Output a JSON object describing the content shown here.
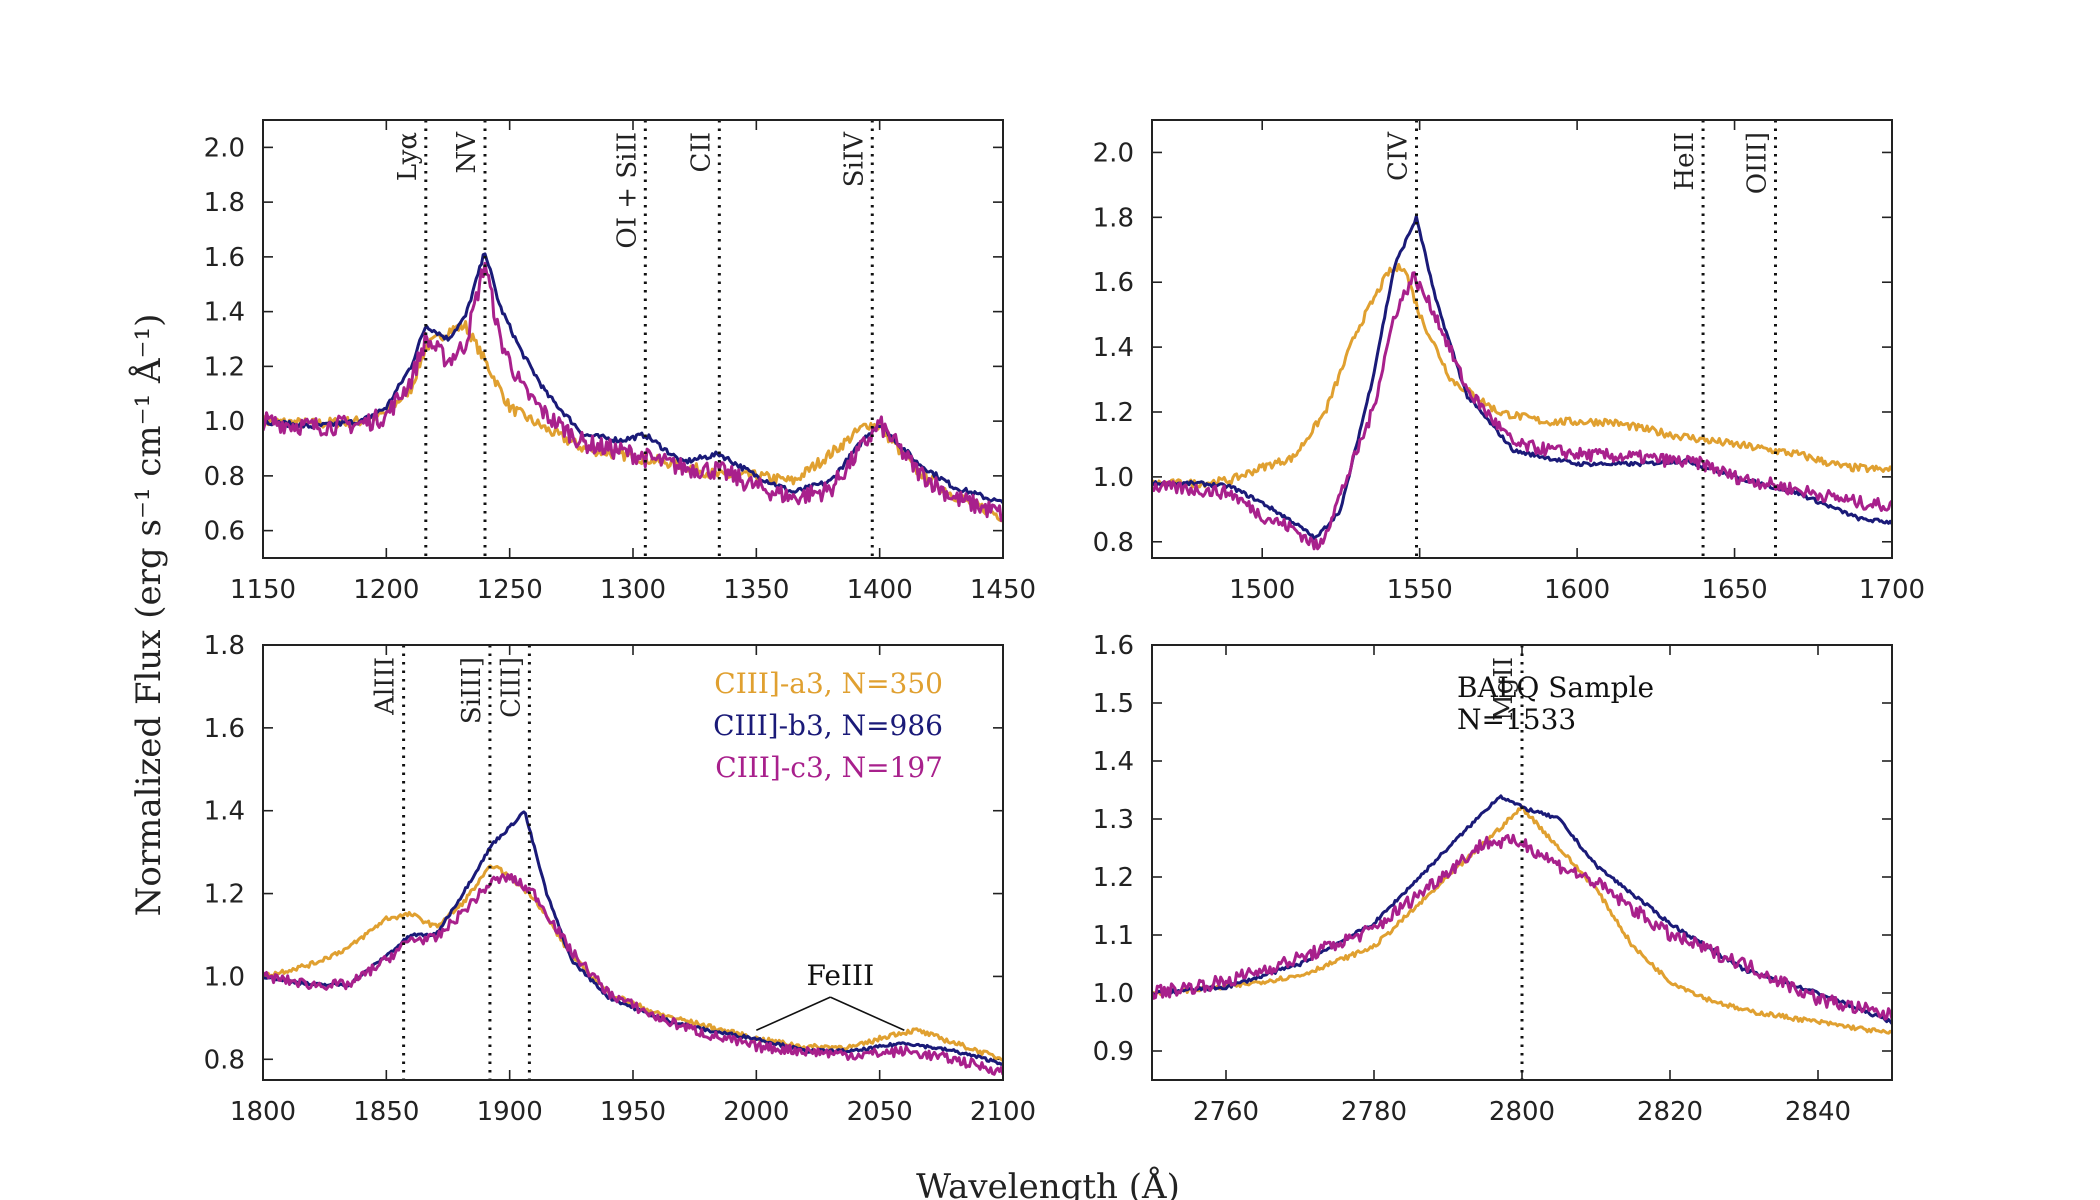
{
  "figure": {
    "ylabel": "Normalized Flux (erg s⁻¹ cm⁻¹ Å⁻¹)",
    "xlabel": "Wavelength (Å)"
  },
  "colors": {
    "a3": "#e0a030",
    "b3": "#1a1a78",
    "c3": "#a8208c"
  },
  "chart_data": [
    {
      "type": "line",
      "id": "p1",
      "xlim": [
        1150,
        1450
      ],
      "ylim": [
        0.5,
        2.1
      ],
      "xticks": [
        1150,
        1200,
        1250,
        1300,
        1350,
        1400,
        1450
      ],
      "yticks": [
        "0.6",
        "0.8",
        "1.0",
        "1.2",
        "1.4",
        "1.6",
        "1.8",
        "2.0"
      ],
      "lines": [
        {
          "x": 1216,
          "label": "Lyα"
        },
        {
          "x": 1240,
          "label": "NV"
        },
        {
          "x": 1305,
          "label": "OI + SiII"
        },
        {
          "x": 1335,
          "label": "CII"
        },
        {
          "x": 1397,
          "label": "SiIV"
        }
      ],
      "series": [
        {
          "name": "CIII]-a3",
          "color": "#e0a030",
          "noise": 0.02,
          "x": [
            1150,
            1170,
            1190,
            1200,
            1210,
            1216,
            1225,
            1232,
            1240,
            1250,
            1265,
            1280,
            1300,
            1320,
            1335,
            1350,
            1365,
            1380,
            1395,
            1400,
            1415,
            1430,
            1450
          ],
          "y": [
            1.0,
            0.99,
            1.0,
            1.03,
            1.12,
            1.27,
            1.33,
            1.35,
            1.22,
            1.05,
            0.97,
            0.9,
            0.87,
            0.84,
            0.8,
            0.8,
            0.78,
            0.88,
            0.99,
            0.98,
            0.82,
            0.73,
            0.65
          ]
        },
        {
          "name": "CIII]-b3",
          "color": "#1a1a78",
          "noise": 0.01,
          "x": [
            1150,
            1170,
            1190,
            1200,
            1210,
            1216,
            1225,
            1232,
            1240,
            1246,
            1255,
            1265,
            1280,
            1295,
            1305,
            1320,
            1335,
            1350,
            1365,
            1380,
            1395,
            1400,
            1415,
            1430,
            1450
          ],
          "y": [
            1.0,
            0.98,
            1.0,
            1.05,
            1.2,
            1.35,
            1.3,
            1.38,
            1.62,
            1.42,
            1.25,
            1.1,
            0.95,
            0.93,
            0.95,
            0.85,
            0.88,
            0.8,
            0.74,
            0.78,
            0.95,
            0.99,
            0.85,
            0.76,
            0.7
          ]
        },
        {
          "name": "CIII]-c3",
          "color": "#a8208c",
          "noise": 0.035,
          "x": [
            1150,
            1170,
            1190,
            1200,
            1210,
            1216,
            1225,
            1232,
            1240,
            1246,
            1255,
            1265,
            1280,
            1300,
            1320,
            1335,
            1350,
            1365,
            1380,
            1395,
            1400,
            1415,
            1430,
            1450
          ],
          "y": [
            1.0,
            0.98,
            0.99,
            1.02,
            1.15,
            1.3,
            1.22,
            1.28,
            1.58,
            1.3,
            1.12,
            1.02,
            0.92,
            0.88,
            0.83,
            0.82,
            0.76,
            0.72,
            0.75,
            0.93,
            0.99,
            0.82,
            0.72,
            0.66
          ]
        }
      ]
    },
    {
      "type": "line",
      "id": "p2",
      "xlim": [
        1465,
        1700
      ],
      "ylim": [
        0.75,
        2.1
      ],
      "xticks": [
        1500,
        1550,
        1600,
        1650,
        1700
      ],
      "yticks": [
        "0.8",
        "1.0",
        "1.2",
        "1.4",
        "1.6",
        "1.8",
        "2.0"
      ],
      "lines": [
        {
          "x": 1549,
          "label": "CIV"
        },
        {
          "x": 1640,
          "label": "HeII"
        },
        {
          "x": 1663,
          "label": "OIII]"
        }
      ],
      "series": [
        {
          "name": "CIII]-a3",
          "color": "#e0a030",
          "noise": 0.012,
          "x": [
            1465,
            1480,
            1490,
            1500,
            1510,
            1520,
            1530,
            1540,
            1545,
            1550,
            1560,
            1575,
            1590,
            1610,
            1630,
            1650,
            1670,
            1685,
            1700
          ],
          "y": [
            0.98,
            0.98,
            0.99,
            1.03,
            1.06,
            1.2,
            1.45,
            1.63,
            1.65,
            1.5,
            1.3,
            1.2,
            1.17,
            1.17,
            1.13,
            1.1,
            1.07,
            1.03,
            1.02
          ]
        },
        {
          "name": "CIII]-b3",
          "color": "#1a1a78",
          "noise": 0.006,
          "x": [
            1465,
            1480,
            1490,
            1500,
            1510,
            1517,
            1525,
            1535,
            1542,
            1549,
            1555,
            1565,
            1580,
            1600,
            1620,
            1635,
            1650,
            1670,
            1690,
            1700
          ],
          "y": [
            0.98,
            0.98,
            0.97,
            0.92,
            0.86,
            0.81,
            0.9,
            1.3,
            1.65,
            1.8,
            1.55,
            1.25,
            1.08,
            1.04,
            1.04,
            1.05,
            1.0,
            0.95,
            0.87,
            0.86
          ]
        },
        {
          "name": "CIII]-c3",
          "color": "#a8208c",
          "noise": 0.02,
          "x": [
            1465,
            1480,
            1490,
            1500,
            1510,
            1518,
            1525,
            1535,
            1542,
            1548,
            1555,
            1565,
            1580,
            1600,
            1620,
            1640,
            1650,
            1670,
            1690,
            1700
          ],
          "y": [
            0.97,
            0.96,
            0.95,
            0.88,
            0.84,
            0.78,
            0.95,
            1.2,
            1.5,
            1.62,
            1.5,
            1.27,
            1.1,
            1.07,
            1.06,
            1.04,
            1.0,
            0.96,
            0.92,
            0.91
          ]
        }
      ]
    },
    {
      "type": "line",
      "id": "p3",
      "xlim": [
        1800,
        2100
      ],
      "ylim": [
        0.75,
        1.8
      ],
      "xticks": [
        1800,
        1850,
        1900,
        1950,
        2000,
        2050,
        2100
      ],
      "yticks": [
        "0.8",
        "1.0",
        "1.2",
        "1.4",
        "1.6",
        "1.8"
      ],
      "lines": [
        {
          "x": 1857,
          "label": "AlIII"
        },
        {
          "x": 1892,
          "label": "SiIII]"
        },
        {
          "x": 1908,
          "label": "CIII]"
        }
      ],
      "annotation": {
        "label": "FeIII",
        "x": 2030,
        "y": 0.95,
        "targets": [
          [
            2000,
            0.87
          ],
          [
            2060,
            0.87
          ]
        ]
      },
      "legend": [
        {
          "label": "CIII]-a3, N=350",
          "color": "#e0a030"
        },
        {
          "label": "CIII]-b3, N=986",
          "color": "#1a1a78"
        },
        {
          "label": "CIII]-c3, N=197",
          "color": "#a8208c"
        }
      ],
      "series": [
        {
          "name": "CIII]-a3",
          "color": "#e0a030",
          "noise": 0.006,
          "x": [
            1800,
            1820,
            1835,
            1850,
            1860,
            1870,
            1880,
            1893,
            1900,
            1910,
            1925,
            1940,
            1960,
            1980,
            2000,
            2020,
            2040,
            2055,
            2065,
            2080,
            2100
          ],
          "y": [
            1.0,
            1.03,
            1.07,
            1.14,
            1.15,
            1.12,
            1.17,
            1.27,
            1.24,
            1.19,
            1.05,
            0.96,
            0.91,
            0.88,
            0.85,
            0.83,
            0.83,
            0.86,
            0.87,
            0.84,
            0.8
          ]
        },
        {
          "name": "CIII]-b3",
          "color": "#1a1a78",
          "noise": 0.004,
          "x": [
            1800,
            1820,
            1835,
            1850,
            1860,
            1870,
            1880,
            1893,
            1900,
            1906,
            1915,
            1925,
            1940,
            1960,
            1980,
            2000,
            2020,
            2040,
            2060,
            2080,
            2100
          ],
          "y": [
            1.0,
            0.98,
            0.98,
            1.05,
            1.1,
            1.1,
            1.19,
            1.32,
            1.36,
            1.4,
            1.2,
            1.04,
            0.95,
            0.9,
            0.87,
            0.85,
            0.82,
            0.82,
            0.84,
            0.82,
            0.79
          ]
        },
        {
          "name": "CIII]-c3",
          "color": "#a8208c",
          "noise": 0.012,
          "x": [
            1800,
            1820,
            1835,
            1850,
            1860,
            1870,
            1880,
            1893,
            1900,
            1910,
            1925,
            1940,
            1960,
            1980,
            2000,
            2020,
            2040,
            2060,
            2080,
            2100
          ],
          "y": [
            1.0,
            0.98,
            0.98,
            1.04,
            1.09,
            1.09,
            1.15,
            1.23,
            1.24,
            1.2,
            1.06,
            0.96,
            0.9,
            0.86,
            0.83,
            0.82,
            0.81,
            0.82,
            0.8,
            0.77
          ]
        }
      ]
    },
    {
      "type": "line",
      "id": "p4",
      "xlim": [
        2750,
        2850
      ],
      "ylim": [
        0.85,
        1.6
      ],
      "xticks": [
        2760,
        2780,
        2800,
        2820,
        2840
      ],
      "yticks": [
        "0.9",
        "1.0",
        "1.1",
        "1.2",
        "1.3",
        "1.4",
        "1.5",
        "1.6"
      ],
      "lines": [
        {
          "x": 2800,
          "label": "MgII"
        }
      ],
      "sample_label": [
        "BALQ Sample",
        "N=1533"
      ],
      "series": [
        {
          "name": "CIII]-a3",
          "color": "#e0a030",
          "noise": 0.004,
          "x": [
            2750,
            2760,
            2770,
            2780,
            2790,
            2795,
            2800,
            2805,
            2810,
            2815,
            2820,
            2825,
            2830,
            2840,
            2850
          ],
          "y": [
            1.0,
            1.01,
            1.03,
            1.08,
            1.2,
            1.26,
            1.32,
            1.25,
            1.18,
            1.08,
            1.02,
            0.99,
            0.97,
            0.95,
            0.93
          ]
        },
        {
          "name": "CIII]-b3",
          "color": "#1a1a78",
          "noise": 0.003,
          "x": [
            2750,
            2760,
            2770,
            2780,
            2790,
            2797,
            2800,
            2805,
            2810,
            2820,
            2830,
            2840,
            2850
          ],
          "y": [
            1.0,
            1.01,
            1.05,
            1.12,
            1.25,
            1.34,
            1.32,
            1.3,
            1.22,
            1.12,
            1.04,
            1.0,
            0.95
          ]
        },
        {
          "name": "CIII]-c3",
          "color": "#a8208c",
          "noise": 0.012,
          "x": [
            2750,
            2760,
            2770,
            2780,
            2790,
            2795,
            2800,
            2805,
            2810,
            2820,
            2830,
            2840,
            2850
          ],
          "y": [
            1.0,
            1.02,
            1.06,
            1.11,
            1.21,
            1.26,
            1.26,
            1.22,
            1.19,
            1.1,
            1.05,
            0.99,
            0.96
          ]
        }
      ]
    }
  ]
}
